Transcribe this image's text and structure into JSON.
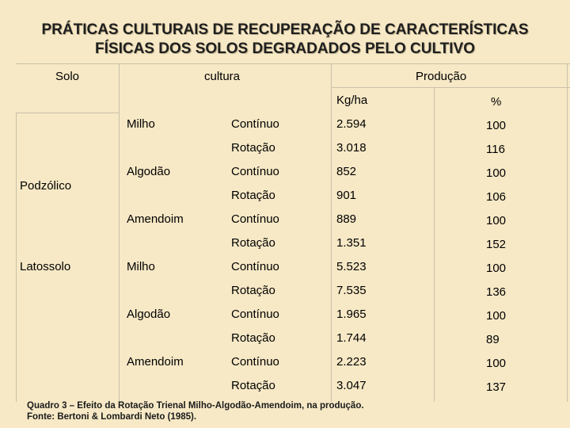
{
  "title": {
    "line1": "PRÁTICAS CULTURAIS DE RECUPERAÇÃO DE CARACTERÍSTICAS",
    "line2": "FÍSICAS DOS SOLOS DEGRADADOS PELO CULTIVO"
  },
  "headers": {
    "solo": "Solo",
    "cultura": "cultura",
    "producao": "Produção",
    "kgha": "Kg/ha",
    "pct": "%"
  },
  "soils": [
    "Podzólico",
    "Latossolo"
  ],
  "crops": [
    "Milho",
    "Algodão",
    "Amendoim",
    "Milho",
    "Algodão",
    "Amendoim"
  ],
  "rows": [
    {
      "system": "Contínuo",
      "kgha": "2.594",
      "pct": "100"
    },
    {
      "system": "Rotação",
      "kgha": "3.018",
      "pct": "116"
    },
    {
      "system": "Contínuo",
      "kgha": "852",
      "pct": "100"
    },
    {
      "system": "Rotação",
      "kgha": "901",
      "pct": "106"
    },
    {
      "system": "Contínuo",
      "kgha": "889",
      "pct": "100"
    },
    {
      "system": "Rotação",
      "kgha": "1.351",
      "pct": "152"
    },
    {
      "system": "Contínuo",
      "kgha": "5.523",
      "pct": "100"
    },
    {
      "system": "Rotação",
      "kgha": "7.535",
      "pct": "136"
    },
    {
      "system": "Contínuo",
      "kgha": "1.965",
      "pct": "100"
    },
    {
      "system": "Rotação",
      "kgha": "1.744",
      "pct": "89"
    },
    {
      "system": "Contínuo",
      "kgha": "2.223",
      "pct": "100"
    },
    {
      "system": "Rotação",
      "kgha": "3.047",
      "pct": "137"
    }
  ],
  "caption": {
    "line1": "Quadro 3 – Efeito da Rotação Trienal Milho-Algodão-Amendoim, na produção.",
    "line2": "Fonte: Bertoni & Lombardi Neto (1985)."
  }
}
